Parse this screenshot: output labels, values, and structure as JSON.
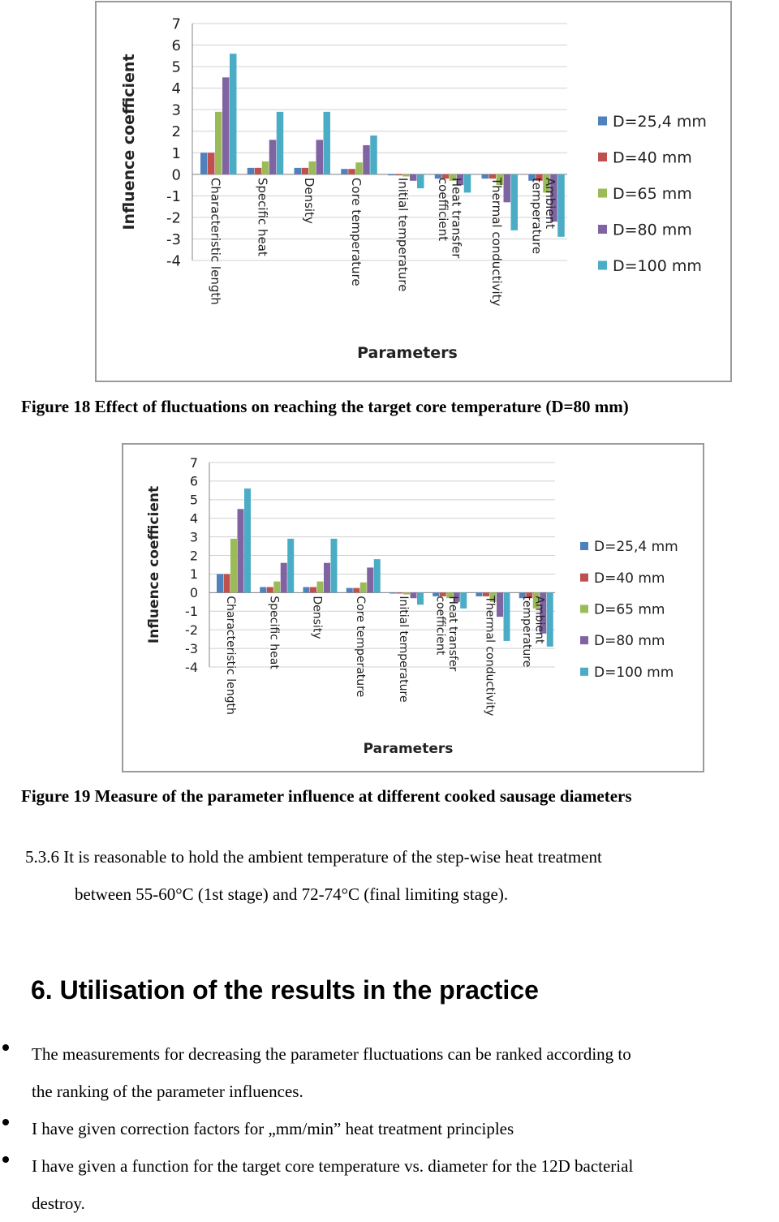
{
  "chart_data": [
    {
      "type": "bar",
      "ylabel": "Influence coefficient",
      "xlabel": "Parameters",
      "ylim": [
        -4,
        7
      ],
      "yticks": [
        "7",
        "6",
        "5",
        "4",
        "3",
        "2",
        "1",
        "0",
        "-1",
        "-2",
        "-3",
        "-4"
      ],
      "categories": [
        "Characteristic length",
        "Specific heat",
        "Density",
        "Core temperature",
        "Initial temperature",
        "Heat transfer coefficient",
        "Thermal conductivity",
        "Ambient temperature"
      ],
      "series": [
        {
          "name": "D=25,4 mm",
          "color": "#4f81bd",
          "values": [
            1.0,
            0.3,
            0.3,
            0.25,
            -0.05,
            -0.2,
            -0.2,
            -0.3
          ]
        },
        {
          "name": "D=40 mm",
          "color": "#c0504d",
          "values": [
            1.0,
            0.3,
            0.3,
            0.25,
            -0.05,
            -0.2,
            -0.2,
            -0.3
          ]
        },
        {
          "name": "D=65 mm",
          "color": "#9bbb59",
          "values": [
            2.9,
            0.6,
            0.6,
            0.55,
            -0.1,
            -0.3,
            -0.5,
            -0.85
          ]
        },
        {
          "name": "D=80 mm",
          "color": "#8064a2",
          "values": [
            4.5,
            1.6,
            1.6,
            1.35,
            -0.3,
            -0.5,
            -1.3,
            -2.2
          ]
        },
        {
          "name": "D=100 mm",
          "color": "#4bacc6",
          "values": [
            5.6,
            2.9,
            2.9,
            1.8,
            -0.65,
            -0.85,
            -2.6,
            -2.9
          ]
        }
      ],
      "legend": "right"
    },
    {
      "type": "bar",
      "ylabel": "Influence coefficient",
      "xlabel": "Parameters",
      "ylim": [
        -4,
        7
      ],
      "yticks": [
        "7",
        "6",
        "5",
        "4",
        "3",
        "2",
        "1",
        "0",
        "-1",
        "-2",
        "-3",
        "-4"
      ],
      "categories": [
        "Characteristic length",
        "Specific heat",
        "Density",
        "Core temperature",
        "Initial temperature",
        "Heat transfer coefficient",
        "Thermal conductivity",
        "Ambient temperature"
      ],
      "series": [
        {
          "name": "D=25,4 mm",
          "color": "#4f81bd",
          "values": [
            1.0,
            0.3,
            0.3,
            0.25,
            -0.05,
            -0.2,
            -0.2,
            -0.3
          ]
        },
        {
          "name": "D=40 mm",
          "color": "#c0504d",
          "values": [
            1.0,
            0.3,
            0.3,
            0.25,
            -0.05,
            -0.2,
            -0.2,
            -0.3
          ]
        },
        {
          "name": "D=65 mm",
          "color": "#9bbb59",
          "values": [
            2.9,
            0.6,
            0.6,
            0.55,
            -0.1,
            -0.3,
            -0.5,
            -0.85
          ]
        },
        {
          "name": "D=80 mm",
          "color": "#8064a2",
          "values": [
            4.5,
            1.6,
            1.6,
            1.35,
            -0.3,
            -0.5,
            -1.3,
            -2.2
          ]
        },
        {
          "name": "D=100 mm",
          "color": "#4bacc6",
          "values": [
            5.6,
            2.9,
            2.9,
            1.8,
            -0.65,
            -0.85,
            -2.6,
            -2.9
          ]
        }
      ],
      "legend": "right"
    }
  ],
  "captions": {
    "figure18": "Figure 18 Effect of fluctuations on reaching the target core temperature (D=80 mm)",
    "figure19": "Figure 19 Measure of the parameter influence at different cooked sausage diameters"
  },
  "section_536": {
    "line1": "5.3.6 It is reasonable to hold the ambient temperature of the step-wise heat treatment",
    "line2": "between 55-60°C (1st stage) and 72-74°C (final limiting stage)."
  },
  "section6": {
    "heading": "6. Utilisation of the results in the practice",
    "bullets": [
      {
        "line1": "The measurements for decreasing the parameter fluctuations can be ranked according to",
        "line2": "the ranking of the parameter influences."
      },
      {
        "line1": "I have given correction factors for „mm/min” heat treatment principles"
      },
      {
        "line1": "I have given a function for the target core temperature vs. diameter for the 12D bacterial",
        "line2": "destroy."
      }
    ]
  }
}
